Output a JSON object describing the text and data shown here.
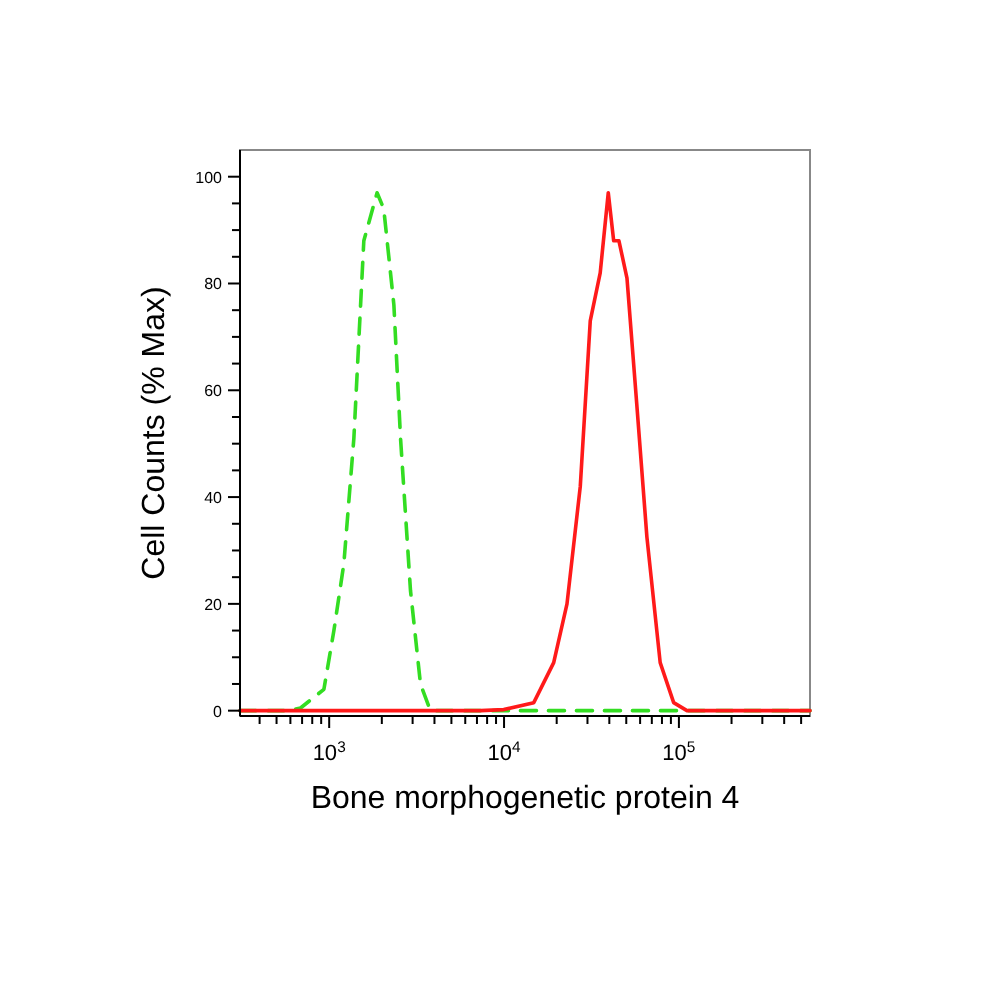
{
  "chart_data": {
    "type": "line",
    "xlabel": "Bone morphogenetic protein 4",
    "ylabel": "Cell Counts (% Max)",
    "log": "x",
    "xlim": [
      309,
      562000
    ],
    "ylim": [
      -1,
      105
    ],
    "xticks": [
      {
        "value": 400,
        "label": null
      },
      {
        "value": 500,
        "label": null
      },
      {
        "value": 600,
        "label": null
      },
      {
        "value": 700,
        "label": null
      },
      {
        "value": 800,
        "label": null
      },
      {
        "value": 900,
        "label": null
      },
      {
        "value": 1000,
        "label": "10$^{3}$"
      },
      {
        "value": 2000,
        "label": null
      },
      {
        "value": 3000,
        "label": null
      },
      {
        "value": 4000,
        "label": null
      },
      {
        "value": 5000,
        "label": null
      },
      {
        "value": 6000,
        "label": null
      },
      {
        "value": 7000,
        "label": null
      },
      {
        "value": 8000,
        "label": null
      },
      {
        "value": 9000,
        "label": null
      },
      {
        "value": 10000,
        "label": "10$^{4}$"
      },
      {
        "value": 20000,
        "label": null
      },
      {
        "value": 30000,
        "label": null
      },
      {
        "value": 40000,
        "label": null
      },
      {
        "value": 50000,
        "label": null
      },
      {
        "value": 60000,
        "label": null
      },
      {
        "value": 70000,
        "label": null
      },
      {
        "value": 80000,
        "label": null
      },
      {
        "value": 90000,
        "label": null
      },
      {
        "value": 100000,
        "label": "10$^{5}$"
      },
      {
        "value": 200000,
        "label": null
      },
      {
        "value": 300000,
        "label": null
      },
      {
        "value": 400000,
        "label": null
      },
      {
        "value": 500000,
        "label": null
      }
    ],
    "yticks": [
      0,
      {
        "value": 5,
        "label": null
      },
      {
        "value": 10,
        "label": null
      },
      {
        "value": 15,
        "label": null
      },
      20,
      {
        "value": 25,
        "label": null
      },
      {
        "value": 30,
        "label": null
      },
      {
        "value": 35,
        "label": null
      },
      40,
      {
        "value": 45,
        "label": null
      },
      {
        "value": 50,
        "label": null
      },
      {
        "value": 55,
        "label": null
      },
      60,
      {
        "value": 65,
        "label": null
      },
      {
        "value": 70,
        "label": null
      },
      {
        "value": 75,
        "label": null
      },
      80,
      {
        "value": 85,
        "label": null
      },
      {
        "value": 90,
        "label": null
      },
      {
        "value": 95,
        "label": null
      },
      100
    ],
    "grid": false,
    "marker": "none",
    "series": [
      {
        "color": "#33dd22",
        "line_style": "dashed",
        "x": [
          309,
          575,
          686,
          933,
          1064,
          1213,
          1384,
          1578,
          1879,
          2051,
          2344,
          2559,
          2917,
          3327,
          3793,
          562000
        ],
        "values": [
          0,
          0,
          0.5,
          4,
          15,
          27.5,
          51,
          88,
          97,
          94,
          76,
          51,
          22.5,
          5,
          0,
          0
        ]
      },
      {
        "color": "#ff1a1a",
        "line_style": "solid",
        "x": [
          309,
          7330,
          9960,
          14790,
          19230,
          22910,
          27290,
          31120,
          35480,
          39450,
          42360,
          45400,
          50470,
          57540,
          65620,
          78160,
          93330,
          111200,
          562000
        ],
        "values": [
          0,
          0,
          0.2,
          1.5,
          9,
          20,
          42,
          73,
          82,
          97,
          88,
          88,
          81,
          57,
          32.5,
          9,
          1.5,
          0,
          0
        ]
      }
    ]
  }
}
